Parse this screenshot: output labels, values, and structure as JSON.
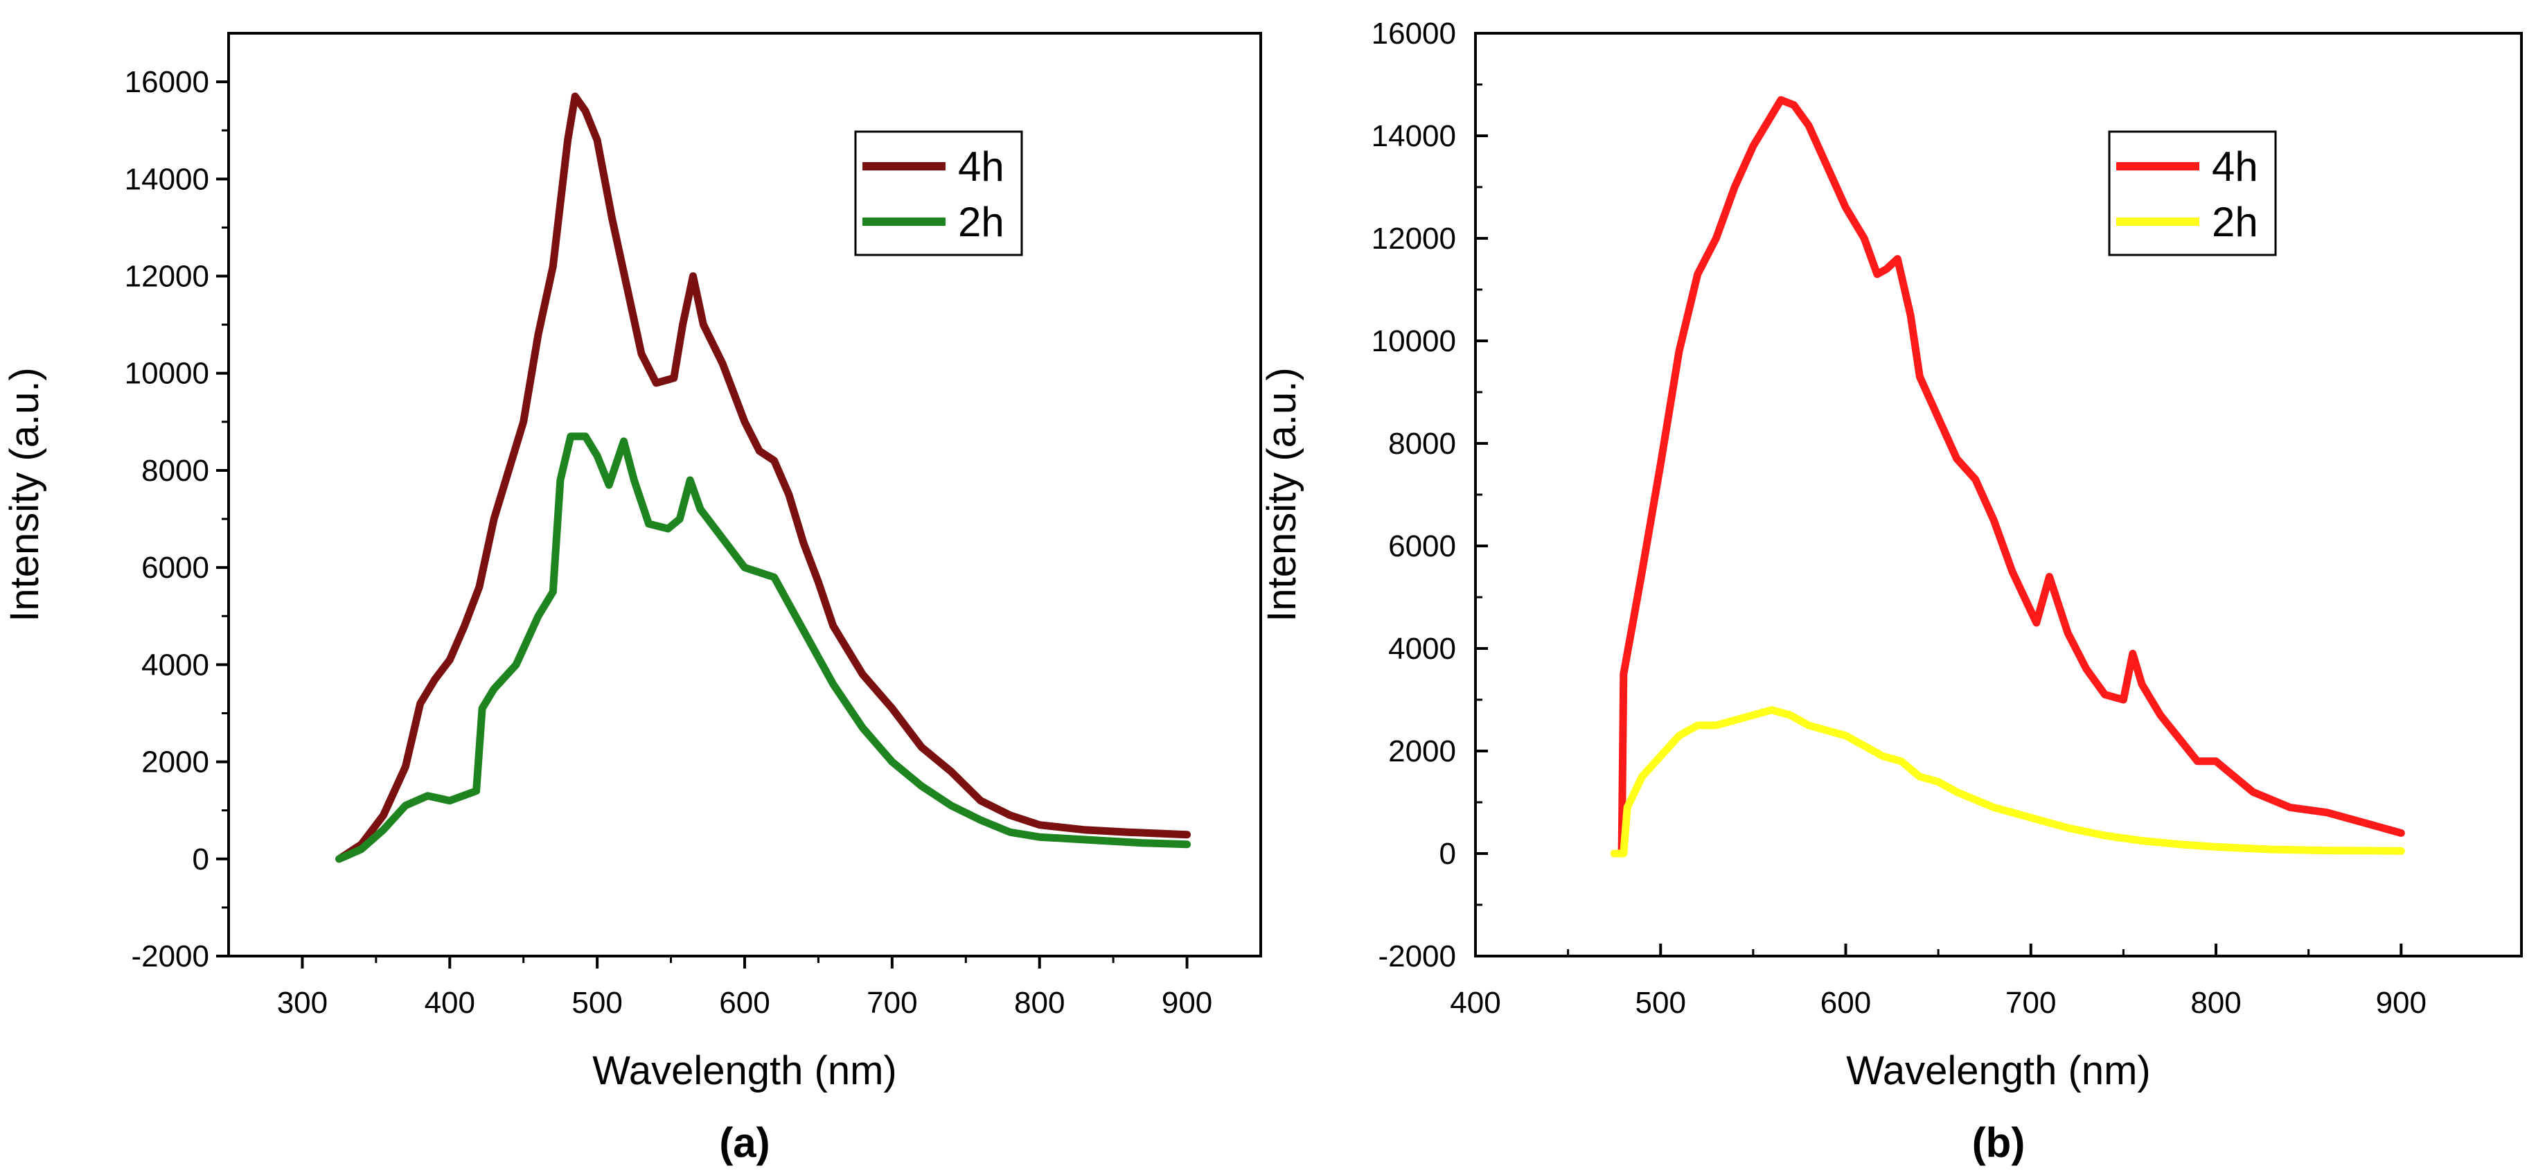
{
  "chart_data": [
    {
      "type": "line",
      "panel_label": "(a)",
      "xlabel": "Wavelength (nm)",
      "ylabel": "Intensity (a.u.)",
      "xlim": [
        250,
        950
      ],
      "ylim": [
        -2000,
        17000
      ],
      "xticks": [
        300,
        400,
        500,
        600,
        700,
        800,
        900
      ],
      "yticks": [
        -2000,
        0,
        2000,
        4000,
        6000,
        8000,
        10000,
        12000,
        14000,
        16000
      ],
      "grid": false,
      "legend_position": "top-right",
      "series": [
        {
          "name": "4h",
          "color": "#7a1010",
          "points": [
            [
              325,
              0
            ],
            [
              340,
              300
            ],
            [
              355,
              900
            ],
            [
              370,
              1900
            ],
            [
              380,
              3200
            ],
            [
              390,
              3700
            ],
            [
              400,
              4100
            ],
            [
              410,
              4800
            ],
            [
              420,
              5600
            ],
            [
              430,
              7000
            ],
            [
              440,
              8000
            ],
            [
              450,
              9000
            ],
            [
              460,
              10800
            ],
            [
              470,
              12200
            ],
            [
              480,
              14800
            ],
            [
              485,
              15700
            ],
            [
              492,
              15400
            ],
            [
              500,
              14800
            ],
            [
              510,
              13200
            ],
            [
              520,
              11800
            ],
            [
              530,
              10400
            ],
            [
              540,
              9800
            ],
            [
              552,
              9900
            ],
            [
              558,
              11000
            ],
            [
              565,
              12000
            ],
            [
              572,
              11000
            ],
            [
              585,
              10200
            ],
            [
              600,
              9000
            ],
            [
              610,
              8400
            ],
            [
              620,
              8200
            ],
            [
              630,
              7500
            ],
            [
              640,
              6500
            ],
            [
              650,
              5700
            ],
            [
              660,
              4800
            ],
            [
              680,
              3800
            ],
            [
              700,
              3100
            ],
            [
              720,
              2300
            ],
            [
              740,
              1800
            ],
            [
              760,
              1200
            ],
            [
              780,
              900
            ],
            [
              800,
              700
            ],
            [
              830,
              600
            ],
            [
              860,
              550
            ],
            [
              900,
              500
            ]
          ]
        },
        {
          "name": "2h",
          "color": "#1e8420",
          "points": [
            [
              325,
              0
            ],
            [
              340,
              200
            ],
            [
              355,
              600
            ],
            [
              370,
              1100
            ],
            [
              385,
              1300
            ],
            [
              400,
              1200
            ],
            [
              418,
              1400
            ],
            [
              422,
              3100
            ],
            [
              430,
              3500
            ],
            [
              445,
              4000
            ],
            [
              460,
              5000
            ],
            [
              470,
              5500
            ],
            [
              475,
              7800
            ],
            [
              482,
              8700
            ],
            [
              492,
              8700
            ],
            [
              500,
              8300
            ],
            [
              508,
              7700
            ],
            [
              518,
              8600
            ],
            [
              525,
              7800
            ],
            [
              535,
              6900
            ],
            [
              548,
              6800
            ],
            [
              556,
              7000
            ],
            [
              563,
              7800
            ],
            [
              570,
              7200
            ],
            [
              585,
              6600
            ],
            [
              600,
              6000
            ],
            [
              620,
              5800
            ],
            [
              640,
              4700
            ],
            [
              660,
              3600
            ],
            [
              680,
              2700
            ],
            [
              700,
              2000
            ],
            [
              720,
              1500
            ],
            [
              740,
              1100
            ],
            [
              760,
              800
            ],
            [
              780,
              550
            ],
            [
              800,
              450
            ],
            [
              840,
              380
            ],
            [
              870,
              330
            ],
            [
              900,
              300
            ]
          ]
        }
      ]
    },
    {
      "type": "line",
      "panel_label": "(b)",
      "xlabel": "Wavelength (nm)",
      "ylabel": "Intensity (a.u.)",
      "xlim": [
        400,
        965
      ],
      "ylim": [
        -2000,
        16000
      ],
      "xticks": [
        400,
        500,
        600,
        700,
        800,
        900
      ],
      "yticks": [
        -2000,
        0,
        2000,
        4000,
        6000,
        8000,
        10000,
        12000,
        14000,
        16000
      ],
      "grid": false,
      "legend_position": "top-right",
      "series": [
        {
          "name": "4h",
          "color": "#ff1a1a",
          "points": [
            [
              475,
              0
            ],
            [
              479,
              0
            ],
            [
              480,
              3500
            ],
            [
              485,
              4500
            ],
            [
              490,
              5500
            ],
            [
              500,
              7600
            ],
            [
              510,
              9800
            ],
            [
              520,
              11300
            ],
            [
              530,
              12000
            ],
            [
              540,
              13000
            ],
            [
              550,
              13800
            ],
            [
              560,
              14400
            ],
            [
              565,
              14700
            ],
            [
              572,
              14600
            ],
            [
              580,
              14200
            ],
            [
              590,
              13400
            ],
            [
              600,
              12600
            ],
            [
              610,
              12000
            ],
            [
              617,
              11300
            ],
            [
              622,
              11400
            ],
            [
              628,
              11600
            ],
            [
              635,
              10500
            ],
            [
              640,
              9300
            ],
            [
              650,
              8500
            ],
            [
              660,
              7700
            ],
            [
              670,
              7300
            ],
            [
              680,
              6500
            ],
            [
              690,
              5500
            ],
            [
              703,
              4500
            ],
            [
              710,
              5400
            ],
            [
              720,
              4300
            ],
            [
              730,
              3600
            ],
            [
              740,
              3100
            ],
            [
              750,
              3000
            ],
            [
              755,
              3900
            ],
            [
              760,
              3300
            ],
            [
              770,
              2700
            ],
            [
              790,
              1800
            ],
            [
              800,
              1800
            ],
            [
              820,
              1200
            ],
            [
              840,
              900
            ],
            [
              860,
              800
            ],
            [
              880,
              600
            ],
            [
              900,
              400
            ]
          ]
        },
        {
          "name": "2h",
          "color": "#ffff1a",
          "points": [
            [
              475,
              0
            ],
            [
              480,
              0
            ],
            [
              482,
              900
            ],
            [
              490,
              1500
            ],
            [
              500,
              1900
            ],
            [
              510,
              2300
            ],
            [
              520,
              2500
            ],
            [
              530,
              2500
            ],
            [
              540,
              2600
            ],
            [
              550,
              2700
            ],
            [
              560,
              2800
            ],
            [
              570,
              2700
            ],
            [
              580,
              2500
            ],
            [
              590,
              2400
            ],
            [
              600,
              2300
            ],
            [
              610,
              2100
            ],
            [
              620,
              1900
            ],
            [
              630,
              1800
            ],
            [
              640,
              1500
            ],
            [
              650,
              1400
            ],
            [
              660,
              1200
            ],
            [
              680,
              900
            ],
            [
              700,
              700
            ],
            [
              720,
              500
            ],
            [
              740,
              350
            ],
            [
              760,
              250
            ],
            [
              780,
              180
            ],
            [
              800,
              130
            ],
            [
              830,
              80
            ],
            [
              860,
              60
            ],
            [
              900,
              50
            ]
          ]
        }
      ]
    }
  ]
}
